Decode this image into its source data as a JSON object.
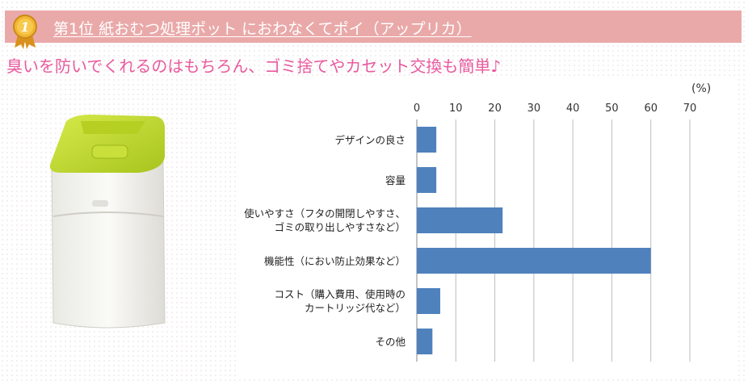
{
  "header": {
    "title": "第1位 紙おむつ処理ポット におわなくてポイ（アップリカ）",
    "medal_number": "1"
  },
  "subtitle": "臭いを防いでくれるのはもちろん、ゴミ捨てやカセット交換も簡単♪",
  "colors": {
    "title_bar": "#eaa9a9",
    "subtitle": "#e85a9e",
    "bar": "#4f81bd",
    "lid": "#c4dc2a"
  },
  "chart_data": {
    "type": "bar",
    "orientation": "horizontal",
    "unit_label": "(%)",
    "xlim": [
      0,
      70
    ],
    "ticks": [
      "0",
      "10",
      "20",
      "30",
      "40",
      "50",
      "60",
      "70"
    ],
    "tick_values": [
      0,
      10,
      20,
      30,
      40,
      50,
      60,
      70
    ],
    "grid": true,
    "categories": [
      {
        "lines": [
          "デザインの良さ"
        ]
      },
      {
        "lines": [
          "容量"
        ]
      },
      {
        "lines": [
          "使いやすさ（フタの開閉しやすさ、",
          "ゴミの取り出しやすさなど）"
        ]
      },
      {
        "lines": [
          "機能性（におい防止効果など）"
        ]
      },
      {
        "lines": [
          "コスト（購入費用、使用時の",
          "カートリッジ代など）"
        ]
      },
      {
        "lines": [
          "その他"
        ]
      }
    ],
    "values": [
      5,
      5,
      22,
      60,
      6,
      4
    ]
  }
}
